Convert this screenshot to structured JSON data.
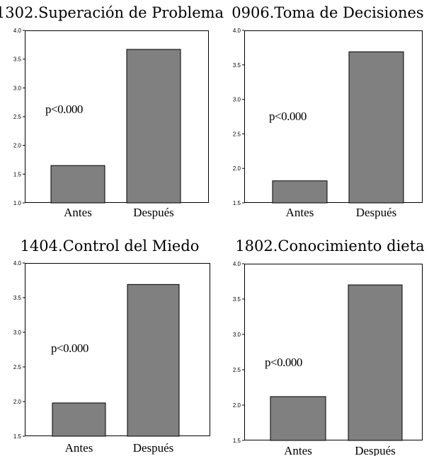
{
  "chart_data": [
    {
      "type": "bar",
      "title": "1302.Superación de Problema",
      "categories": [
        "Antes",
        "Después"
      ],
      "values": [
        1.65,
        3.67
      ],
      "ylim": [
        1.0,
        4.0
      ],
      "yticks": [
        "1.0",
        "1.5",
        "2.0",
        "2.5",
        "3.0",
        "3.5",
        "4.0"
      ],
      "annotation": "p<0.000",
      "bar_color": "#808080"
    },
    {
      "type": "bar",
      "title": "0906.Toma de Decisiones",
      "categories": [
        "Antes",
        "Después"
      ],
      "values": [
        1.82,
        3.69
      ],
      "ylim": [
        1.5,
        4.0
      ],
      "yticks": [
        "1.5",
        "2.0",
        "2.5",
        "3.0",
        "3.5",
        "4.0"
      ],
      "annotation": "p<0.000",
      "bar_color": "#808080"
    },
    {
      "type": "bar",
      "title": "1404.Control del Miedo",
      "categories": [
        "Antes",
        "Después"
      ],
      "values": [
        1.98,
        3.69
      ],
      "ylim": [
        1.5,
        4.0
      ],
      "yticks": [
        "1.5",
        "2.0",
        "2.5",
        "3.0",
        "3.5",
        "4.0"
      ],
      "annotation": "p<0.000",
      "bar_color": "#808080"
    },
    {
      "type": "bar",
      "title": "1802.Conocimiento dieta",
      "categories": [
        "Antes",
        "Después"
      ],
      "values": [
        2.12,
        3.7
      ],
      "ylim": [
        1.5,
        4.0
      ],
      "yticks": [
        "1.5",
        "2.0",
        "2.5",
        "3.0",
        "3.5",
        "4.0"
      ],
      "annotation": "p<0.000",
      "bar_color": "#808080"
    }
  ]
}
